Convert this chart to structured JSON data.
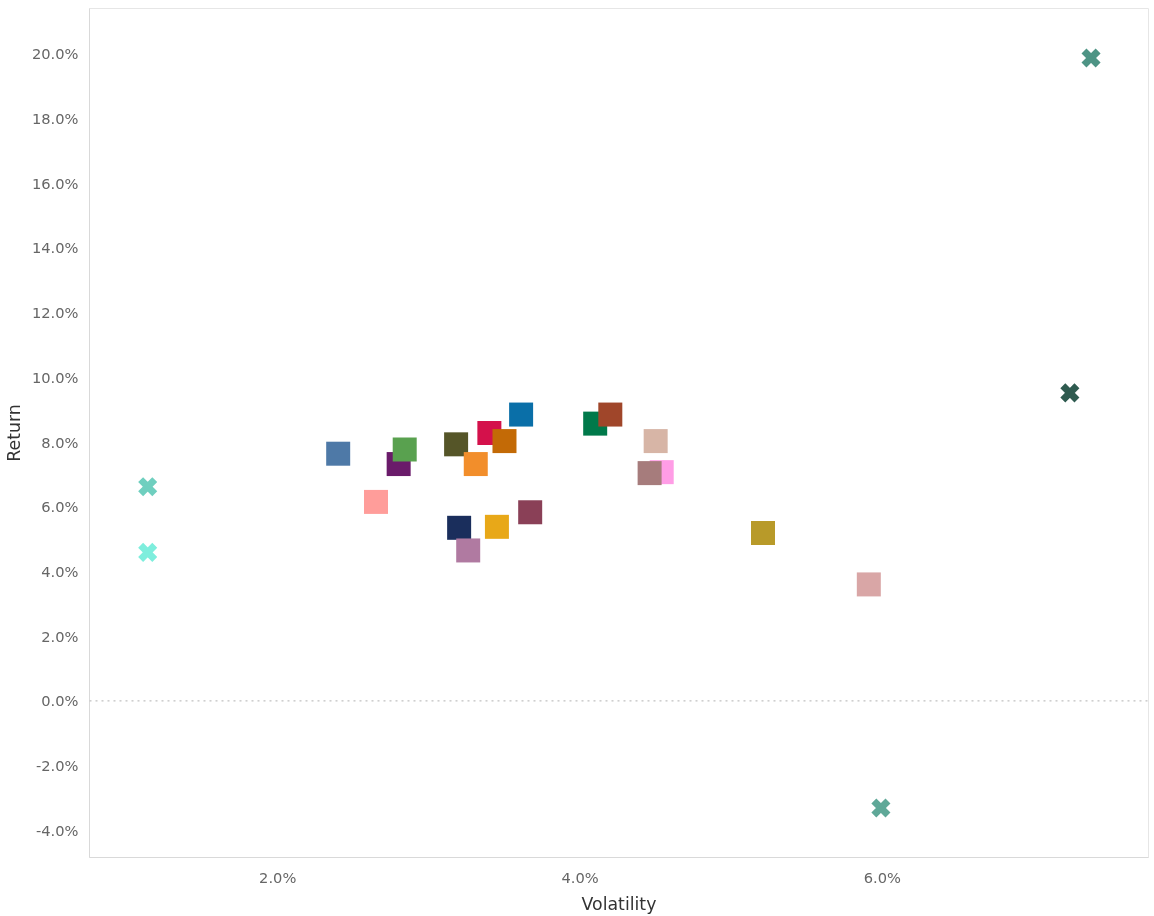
{
  "chart_data": {
    "type": "scatter",
    "xlabel": "Volatility",
    "ylabel": "Return",
    "xlim": [
      0.755,
      7.76
    ],
    "xticks": [
      {
        "value": 2,
        "label": "2.0%"
      },
      {
        "value": 4,
        "label": "4.0%"
      },
      {
        "value": 6,
        "label": "6.0%"
      }
    ],
    "ylim": [
      -4.84,
      21.4
    ],
    "yticks": [
      {
        "value": -4,
        "label": "-4.0%"
      },
      {
        "value": -2,
        "label": "-2.0%"
      },
      {
        "value": 0,
        "label": "0.0%"
      },
      {
        "value": 2,
        "label": "2.0%"
      },
      {
        "value": 4,
        "label": "4.0%"
      },
      {
        "value": 6,
        "label": "6.0%"
      },
      {
        "value": 8,
        "label": "8.0%"
      },
      {
        "value": 10,
        "label": "10.0%"
      },
      {
        "value": 12,
        "label": "12.0%"
      },
      {
        "value": 14,
        "label": "14.0%"
      },
      {
        "value": 16,
        "label": "16.0%"
      },
      {
        "value": 18,
        "label": "18.0%"
      },
      {
        "value": 20,
        "label": "20.0%"
      }
    ],
    "grid": false,
    "ref_lines": [
      {
        "axis": "y",
        "value": 0,
        "color": "#b0b0b0",
        "line_style": "dotted"
      }
    ],
    "series": [
      {
        "marker": "square",
        "x": [
          2.4,
          2.65,
          2.8,
          2.84,
          3.18,
          3.2,
          3.26,
          3.31,
          3.4,
          3.45,
          3.5,
          3.61,
          3.67,
          4.1,
          4.2,
          4.5,
          4.54,
          4.46,
          5.21,
          5.91
        ],
        "values": [
          7.64,
          6.15,
          7.32,
          7.77,
          7.93,
          5.35,
          4.65,
          7.32,
          8.28,
          5.38,
          8.03,
          8.85,
          5.83,
          8.57,
          8.85,
          8.03,
          7.07,
          7.04,
          5.19,
          3.6
        ],
        "colors": [
          "#4e79a7",
          "#ff9d9a",
          "#6a1b6a",
          "#59a14f",
          "#555528",
          "#1a2e5c",
          "#b07aa1",
          "#f28e2b",
          "#d4114b",
          "#e8a818",
          "#c36a06",
          "#0a6fa8",
          "#8a4057",
          "#00794a",
          "#a0462a",
          "#d7b5a6",
          "#ff9de6",
          "#a67c7c",
          "#b89a29",
          "#d9a6a6"
        ]
      },
      {
        "marker": "cross",
        "x": [
          1.14,
          1.14,
          7.38,
          7.24,
          5.99
        ],
        "values": [
          6.62,
          4.59,
          19.87,
          9.52,
          -3.31
        ],
        "colors": [
          "#6fcfbf",
          "#7eeedd",
          "#4e9485",
          "#2f5b50",
          "#5fa898"
        ]
      }
    ]
  }
}
